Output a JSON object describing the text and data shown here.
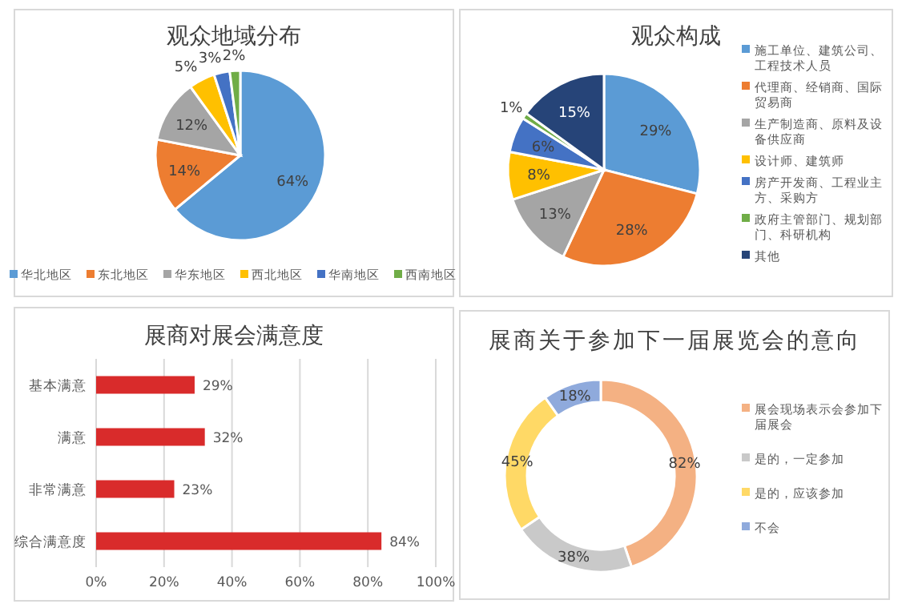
{
  "chart_data": [
    {
      "type": "pie",
      "title": "观众地域分布",
      "legend": "bottom",
      "categories": [
        "华北地区",
        "东北地区",
        "华东地区",
        "西北地区",
        "华南地区",
        "西南地区"
      ],
      "values": [
        64,
        14,
        12,
        5,
        3,
        2
      ],
      "value_labels": [
        "64%",
        "14%",
        "12%",
        "5%",
        "3%",
        "2%"
      ],
      "colors": [
        "#5b9bd5",
        "#ed7d31",
        "#a5a5a5",
        "#ffc000",
        "#4472c4",
        "#70ad47"
      ]
    },
    {
      "type": "pie",
      "title": "观众构成",
      "legend": "right",
      "categories": [
        "施工单位、建筑公司、工程技术人员",
        "代理商、经销商、国际贸易商",
        "生产制造商、原料及设备供应商",
        "设计师、建筑师",
        "房产开发商、工程业主方、采购方",
        "政府主管部门、规划部门、科研机构",
        "其他"
      ],
      "values": [
        29,
        28,
        13,
        8,
        6,
        1,
        15
      ],
      "value_labels": [
        "29%",
        "28%",
        "13%",
        "8%",
        "6%",
        "1%",
        "15%"
      ],
      "colors": [
        "#5b9bd5",
        "#ed7d31",
        "#a5a5a5",
        "#ffc000",
        "#4472c4",
        "#70ad47",
        "#264478"
      ]
    },
    {
      "type": "bar",
      "orientation": "horizontal",
      "title": "展商对展会满意度",
      "grid": "x",
      "categories": [
        "基本满意",
        "满意",
        "非常满意",
        "综合满意度"
      ],
      "values": [
        29,
        32,
        23,
        84
      ],
      "value_labels": [
        "29%",
        "32%",
        "23%",
        "84%"
      ],
      "color": "#d92b2b",
      "xlim": [
        0,
        100
      ],
      "xticks": [
        {
          "value": 0,
          "label": "0%"
        },
        {
          "value": 20,
          "label": "20%"
        },
        {
          "value": 40,
          "label": "40%"
        },
        {
          "value": 60,
          "label": "60%"
        },
        {
          "value": 80,
          "label": "80%"
        },
        {
          "value": 100,
          "label": "100%"
        }
      ]
    },
    {
      "type": "donut",
      "title": "展商关于参加下一届展览会的意向",
      "legend": "right",
      "categories": [
        "展会现场表示会参加下届展会",
        "是的，一定参加",
        "是的，应该参加",
        "不会"
      ],
      "values": [
        82,
        38,
        45,
        18
      ],
      "value_labels": [
        "82%",
        "38%",
        "45%",
        "18%"
      ],
      "colors": [
        "#f4b183",
        "#c9c9c9",
        "#ffd966",
        "#8faadc"
      ]
    }
  ]
}
